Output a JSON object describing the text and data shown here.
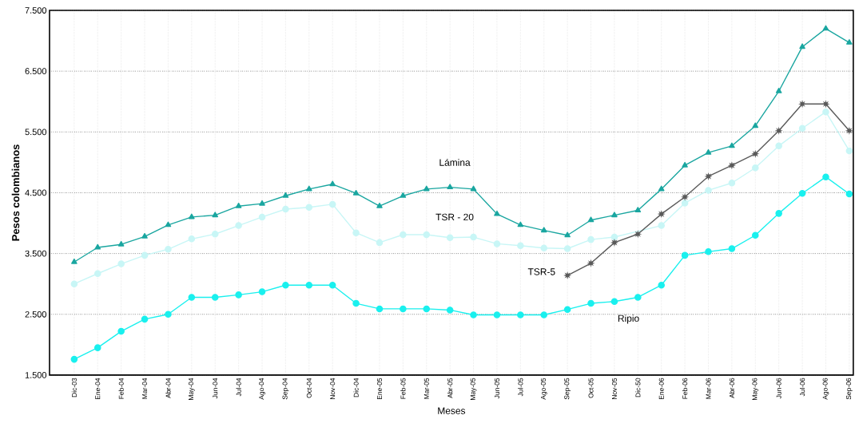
{
  "chart_data": {
    "type": "line",
    "xlabel": "Meses",
    "ylabel": "Pesos colombianos",
    "categories": [
      "Dic-03",
      "Ene-04",
      "Feb-04",
      "Mar-04",
      "Abr-04",
      "May-04",
      "Jun-04",
      "Jul-04",
      "Ago-04",
      "Sep-04",
      "Oct-04",
      "Nov-04",
      "Dic-04",
      "Ene-05",
      "Feb-05",
      "Mar-05",
      "Abr-05",
      "May-05",
      "Jun-05",
      "Jul-05",
      "Ago-05",
      "Sep-05",
      "Oct-05",
      "Nov-05",
      "Dic-50",
      "Ene-06",
      "Feb-06",
      "Mar-06",
      "Abr-06",
      "May-06",
      "Jun-06",
      "Jul-06",
      "Ago-06",
      "Sep-06"
    ],
    "series": [
      {
        "name": "Lámina",
        "color": "#1aa6a0",
        "marker": "triangle",
        "values": [
          3360,
          3600,
          3650,
          3780,
          3970,
          4100,
          4130,
          4280,
          4320,
          4450,
          4560,
          4640,
          4490,
          4280,
          4450,
          4560,
          4590,
          4560,
          4150,
          3970,
          3880,
          3800,
          4050,
          4130,
          4210,
          4560,
          4950,
          5160,
          5270,
          5600,
          6170,
          6900,
          7200,
          6970
        ]
      },
      {
        "name": "TSR - 20",
        "color": "#c8f6f6",
        "marker": "circle",
        "values": [
          3000,
          3170,
          3330,
          3470,
          3570,
          3740,
          3820,
          3960,
          4100,
          4230,
          4260,
          4310,
          3840,
          3680,
          3810,
          3810,
          3760,
          3770,
          3660,
          3630,
          3590,
          3580,
          3730,
          3770,
          null,
          3960,
          4330,
          4540,
          4660,
          4910,
          5270,
          5560,
          5830,
          5190
        ]
      },
      {
        "name": "TSR-5",
        "color": "#5a5a5a",
        "marker": "star",
        "values": [
          null,
          null,
          null,
          null,
          null,
          null,
          null,
          null,
          null,
          null,
          null,
          null,
          null,
          null,
          null,
          null,
          null,
          null,
          null,
          null,
          null,
          3140,
          3340,
          3680,
          3820,
          4150,
          4430,
          4770,
          4950,
          5140,
          5520,
          5960,
          5960,
          5520
        ]
      },
      {
        "name": "Ripio",
        "color": "#19f0ee",
        "marker": "circle",
        "values": [
          1760,
          1950,
          2220,
          2420,
          2500,
          2780,
          2780,
          2820,
          2870,
          2980,
          2980,
          2980,
          2680,
          2590,
          2590,
          2590,
          2570,
          2490,
          2490,
          2490,
          2490,
          2580,
          2680,
          2710,
          2780,
          2980,
          3470,
          3530,
          3580,
          3800,
          4160,
          4490,
          4760,
          4480
        ]
      }
    ],
    "ylim": [
      1500,
      7500
    ],
    "yticks": [
      {
        "value": 1500,
        "label": "1.500"
      },
      {
        "value": 2500,
        "label": "2.500"
      },
      {
        "value": 3500,
        "label": "3.500"
      },
      {
        "value": 4500,
        "label": "4.500"
      },
      {
        "value": 5500,
        "label": "5.500"
      },
      {
        "value": 6500,
        "label": "6.500"
      },
      {
        "value": 7500,
        "label": "7.500"
      }
    ],
    "grid": true,
    "line_style": "solid"
  }
}
